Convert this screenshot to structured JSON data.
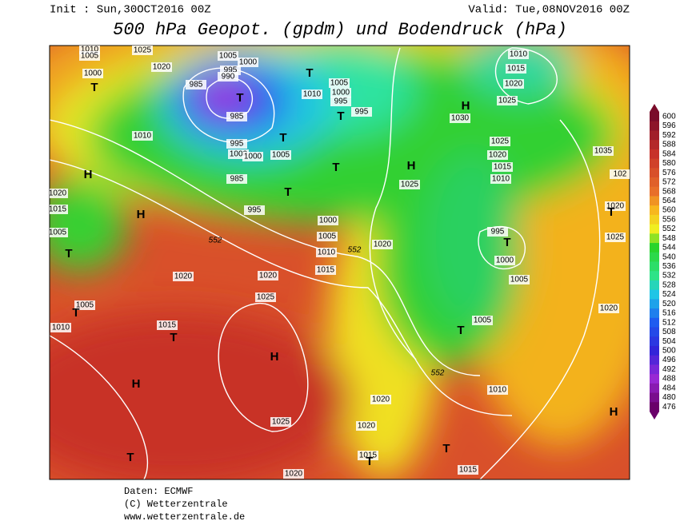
{
  "header": {
    "init": "Init : Sun,30OCT2016 00Z",
    "valid": "Valid: Tue,08NOV2016 00Z",
    "title": "500 hPa Geopot. (gpdm) und Bodendruck (hPa)"
  },
  "legend": {
    "levels": [
      600,
      596,
      592,
      588,
      584,
      580,
      576,
      572,
      568,
      564,
      560,
      556,
      552,
      548,
      544,
      540,
      536,
      532,
      528,
      524,
      520,
      516,
      512,
      508,
      504,
      500,
      496,
      492,
      488,
      484,
      480,
      476
    ]
  },
  "map": {
    "pressure_labels": [
      "1010",
      "1005",
      "1025",
      "1020",
      "1000",
      "1005",
      "1000",
      "995",
      "990",
      "985",
      "985",
      "1005",
      "1000",
      "1010",
      "995",
      "995",
      "1010",
      "995",
      "1000",
      "1000",
      "1005",
      "985",
      "995",
      "1000",
      "1005",
      "1010",
      "1015",
      "1020",
      "1025",
      "1020",
      "1020",
      "1025",
      "1015",
      "1005",
      "1010",
      "1020",
      "1015",
      "1005",
      "1025",
      "1020",
      "1015",
      "1010",
      "995",
      "1000",
      "1005",
      "1035",
      "1020",
      "1025",
      "1020",
      "1010",
      "1015",
      "1020",
      "1025",
      "1030",
      "1005",
      "1010",
      "1020",
      "1020",
      "1025",
      "1015",
      "1015",
      "1020",
      "102"
    ],
    "centers": [
      "T",
      "T",
      "T",
      "T",
      "T",
      "T",
      "T",
      "H",
      "H",
      "H",
      "H",
      "T",
      "T",
      "T",
      "H",
      "H",
      "T",
      "T",
      "T",
      "T",
      "T",
      "T",
      "H"
    ],
    "geopot_labels": [
      "552",
      "552",
      "552"
    ]
  },
  "footer": {
    "source": "Daten: ECMWF",
    "copyright": "(C) Wetterzentrale",
    "url": "www.wetterzentrale.de"
  }
}
